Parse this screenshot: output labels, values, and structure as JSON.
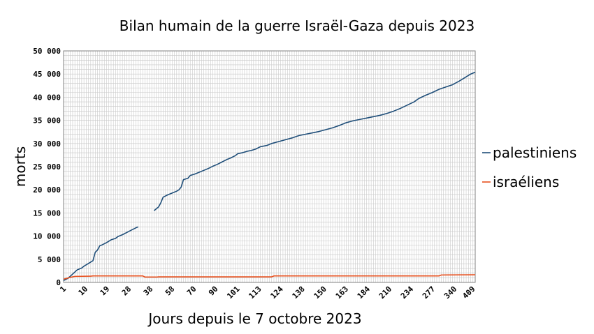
{
  "chart_data": {
    "type": "line",
    "title": "Bilan humain de la guerre Israël-Gaza depuis 2023",
    "xlabel": "Jours depuis le 7 octobre 2023",
    "ylabel": "morts",
    "ylim": [
      0,
      50000
    ],
    "yticks": [
      "0",
      "5 000",
      "10 000",
      "15 000",
      "20 000",
      "25 000",
      "30 000",
      "35 000",
      "40 000",
      "45 000",
      "50 000"
    ],
    "xtick_labels": [
      "1",
      "10",
      "19",
      "28",
      "38",
      "58",
      "70",
      "90",
      "101",
      "113",
      "124",
      "138",
      "150",
      "163",
      "184",
      "210",
      "234",
      "277",
      "340",
      "409"
    ],
    "grid": true,
    "legend_position": "right",
    "series": [
      {
        "name": "palestiniens",
        "color": "#1f4e79",
        "segments": [
          [
            {
              "i": 0,
              "y": 400
            },
            {
              "i": 2,
              "y": 900
            },
            {
              "i": 4,
              "y": 1800
            },
            {
              "i": 6,
              "y": 2700
            },
            {
              "i": 8,
              "y": 3100
            },
            {
              "i": 9,
              "y": 3500
            },
            {
              "i": 11,
              "y": 4100
            },
            {
              "i": 13,
              "y": 4700
            },
            {
              "i": 14,
              "y": 6500
            },
            {
              "i": 15,
              "y": 7000
            },
            {
              "i": 16,
              "y": 7900
            },
            {
              "i": 17,
              "y": 8100
            },
            {
              "i": 19,
              "y": 8600
            },
            {
              "i": 21,
              "y": 9200
            },
            {
              "i": 23,
              "y": 9500
            },
            {
              "i": 24,
              "y": 9900
            },
            {
              "i": 26,
              "y": 10300
            },
            {
              "i": 28,
              "y": 10800
            },
            {
              "i": 30,
              "y": 11300
            },
            {
              "i": 32,
              "y": 11800
            },
            {
              "i": 33,
              "y": 12000
            }
          ],
          [
            {
              "i": 40,
              "y": 15500
            },
            {
              "i": 42,
              "y": 16300
            },
            {
              "i": 43,
              "y": 17200
            },
            {
              "i": 44,
              "y": 18400
            },
            {
              "i": 46,
              "y": 18900
            },
            {
              "i": 48,
              "y": 19300
            },
            {
              "i": 50,
              "y": 19700
            },
            {
              "i": 51,
              "y": 20000
            },
            {
              "i": 52,
              "y": 20600
            },
            {
              "i": 53,
              "y": 22200
            },
            {
              "i": 55,
              "y": 22500
            },
            {
              "i": 56,
              "y": 23100
            },
            {
              "i": 58,
              "y": 23400
            },
            {
              "i": 60,
              "y": 23800
            },
            {
              "i": 62,
              "y": 24200
            },
            {
              "i": 64,
              "y": 24600
            },
            {
              "i": 66,
              "y": 25100
            },
            {
              "i": 68,
              "y": 25500
            },
            {
              "i": 70,
              "y": 26000
            },
            {
              "i": 72,
              "y": 26500
            },
            {
              "i": 74,
              "y": 26900
            },
            {
              "i": 76,
              "y": 27400
            },
            {
              "i": 77,
              "y": 27800
            },
            {
              "i": 79,
              "y": 28000
            },
            {
              "i": 81,
              "y": 28300
            },
            {
              "i": 83,
              "y": 28500
            },
            {
              "i": 85,
              "y": 28800
            },
            {
              "i": 87,
              "y": 29300
            },
            {
              "i": 90,
              "y": 29600
            },
            {
              "i": 92,
              "y": 30000
            },
            {
              "i": 95,
              "y": 30400
            },
            {
              "i": 98,
              "y": 30800
            },
            {
              "i": 101,
              "y": 31200
            },
            {
              "i": 104,
              "y": 31700
            },
            {
              "i": 107,
              "y": 32000
            },
            {
              "i": 110,
              "y": 32300
            },
            {
              "i": 113,
              "y": 32600
            },
            {
              "i": 116,
              "y": 33000
            },
            {
              "i": 119,
              "y": 33400
            },
            {
              "i": 122,
              "y": 33900
            },
            {
              "i": 125,
              "y": 34500
            },
            {
              "i": 128,
              "y": 34900
            },
            {
              "i": 131,
              "y": 35200
            },
            {
              "i": 134,
              "y": 35500
            },
            {
              "i": 137,
              "y": 35800
            },
            {
              "i": 140,
              "y": 36100
            },
            {
              "i": 143,
              "y": 36500
            },
            {
              "i": 146,
              "y": 37000
            },
            {
              "i": 149,
              "y": 37600
            },
            {
              "i": 152,
              "y": 38300
            },
            {
              "i": 155,
              "y": 39000
            },
            {
              "i": 157,
              "y": 39700
            },
            {
              "i": 160,
              "y": 40400
            },
            {
              "i": 163,
              "y": 41000
            },
            {
              "i": 166,
              "y": 41700
            },
            {
              "i": 169,
              "y": 42200
            },
            {
              "i": 172,
              "y": 42700
            },
            {
              "i": 175,
              "y": 43500
            },
            {
              "i": 178,
              "y": 44400
            },
            {
              "i": 180,
              "y": 45000
            },
            {
              "i": 182,
              "y": 45400
            }
          ]
        ]
      },
      {
        "name": "israéliens",
        "color": "#e8501e",
        "segments": [
          [
            {
              "i": 0,
              "y": 700
            },
            {
              "i": 3,
              "y": 1100
            },
            {
              "i": 5,
              "y": 1300
            },
            {
              "i": 12,
              "y": 1350
            },
            {
              "i": 13,
              "y": 1400
            },
            {
              "i": 35,
              "y": 1400
            },
            {
              "i": 36,
              "y": 1150
            },
            {
              "i": 41,
              "y": 1150
            },
            {
              "i": 42,
              "y": 1200
            },
            {
              "i": 92,
              "y": 1200
            },
            {
              "i": 93,
              "y": 1400
            },
            {
              "i": 166,
              "y": 1400
            },
            {
              "i": 167,
              "y": 1600
            },
            {
              "i": 182,
              "y": 1650
            }
          ]
        ]
      }
    ]
  }
}
